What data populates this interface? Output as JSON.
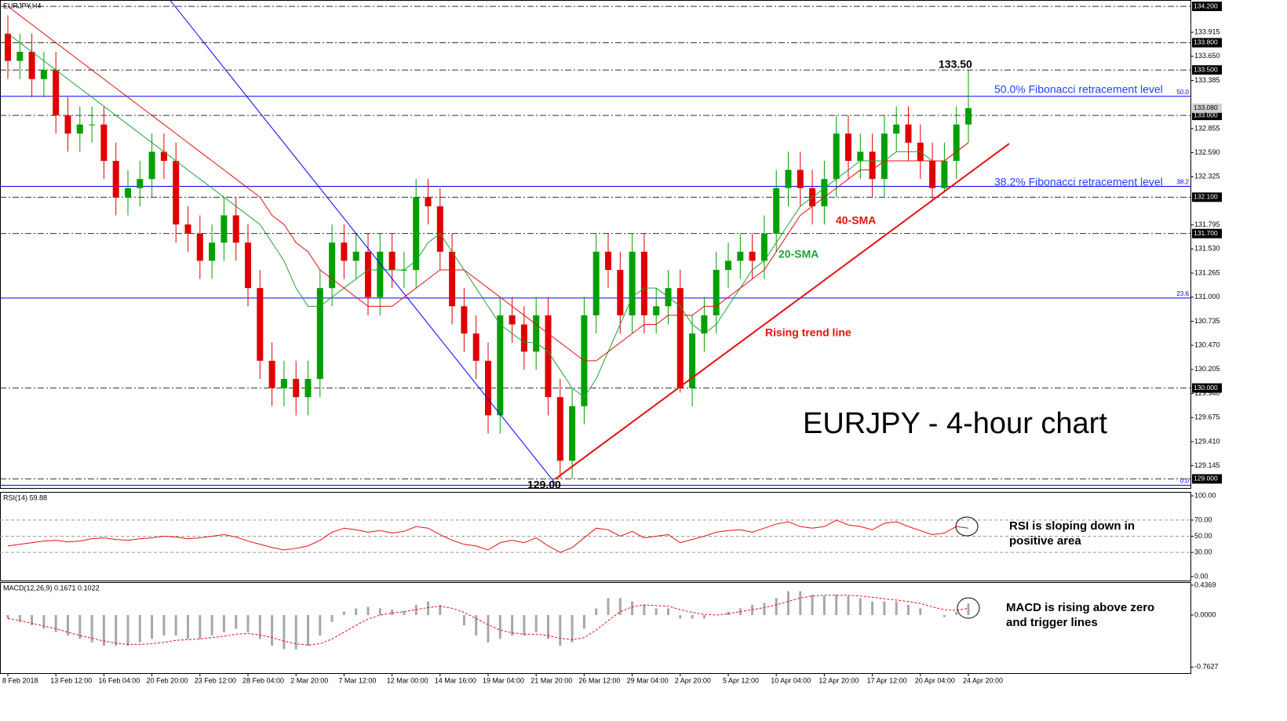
{
  "chart_data": [
    {
      "type": "candlestick",
      "title": "EURJPY,H4",
      "headline": "EURJPY - 4-hour chart",
      "categories": [
        "8 Feb 2018",
        null,
        null,
        null,
        "13 Feb 12:00",
        null,
        null,
        null,
        "16 Feb 04:00",
        null,
        null,
        null,
        "20 Feb 20:00",
        null,
        null,
        null,
        "23 Feb 12:00",
        null,
        null,
        null,
        "28 Feb 04:00",
        null,
        null,
        null,
        "2 Mar 20:00",
        null,
        null,
        null,
        "7 Mar 12:00",
        null,
        null,
        null,
        "12 Mar 00:00",
        null,
        null,
        null,
        "14 Mar 16:00",
        null,
        null,
        null,
        "19 Mar 04:00",
        null,
        null,
        null,
        "21 Mar 20:00",
        null,
        null,
        null,
        "26 Mar 12:00",
        null,
        null,
        null,
        "29 Mar 04:00",
        null,
        null,
        null,
        "2 Apr 20:00",
        null,
        null,
        null,
        "5 Apr 12:00",
        null,
        null,
        null,
        "10 Apr 04:00",
        null,
        null,
        null,
        "12 Apr 20:00",
        null,
        null,
        null,
        "17 Apr 12:00",
        null,
        null,
        null,
        "20 Apr 04:00",
        null,
        null,
        null,
        "24 Apr 20:00"
      ],
      "open": [
        133.9,
        133.6,
        133.7,
        133.4,
        133.5,
        133.0,
        132.8,
        132.9,
        132.9,
        132.5,
        132.1,
        132.2,
        132.3,
        132.6,
        132.5,
        131.8,
        131.7,
        131.4,
        131.6,
        131.9,
        131.6,
        131.1,
        130.3,
        130.0,
        130.1,
        129.9,
        130.1,
        131.1,
        131.6,
        131.4,
        131.5,
        131.0,
        131.5,
        131.3,
        131.3,
        132.1,
        132.0,
        131.5,
        130.9,
        130.6,
        130.3,
        129.7,
        130.8,
        130.7,
        130.4,
        130.8,
        129.9,
        129.2,
        129.8,
        130.8,
        131.5,
        131.3,
        130.8,
        131.5,
        130.8,
        130.9,
        131.1,
        130.0,
        130.6,
        130.8,
        131.3,
        131.4,
        131.5,
        131.4,
        131.7,
        132.2,
        132.4,
        132.2,
        132.0,
        132.3,
        132.8,
        132.5,
        132.6,
        132.3,
        132.8,
        132.9,
        132.7,
        132.5,
        132.2,
        132.5,
        132.9
      ],
      "high": [
        134.1,
        133.9,
        133.9,
        133.7,
        133.7,
        133.2,
        133.1,
        133.1,
        133.1,
        132.7,
        132.4,
        132.5,
        132.8,
        132.8,
        132.7,
        132.0,
        131.9,
        131.8,
        132.1,
        132.1,
        131.8,
        131.3,
        130.5,
        130.3,
        130.3,
        130.3,
        131.3,
        131.8,
        131.8,
        131.7,
        131.7,
        131.7,
        131.7,
        131.5,
        132.3,
        132.3,
        132.2,
        131.7,
        131.1,
        130.8,
        130.5,
        131.0,
        131.0,
        130.9,
        131.0,
        131.0,
        130.1,
        130.0,
        131.0,
        131.7,
        131.7,
        131.5,
        131.7,
        131.7,
        131.1,
        131.3,
        131.3,
        130.8,
        131.0,
        131.5,
        131.6,
        131.7,
        131.7,
        131.9,
        132.4,
        132.6,
        132.6,
        132.4,
        132.5,
        133.0,
        133.0,
        132.8,
        132.8,
        133.0,
        133.1,
        133.1,
        132.9,
        132.7,
        132.7,
        133.1,
        133.5
      ],
      "low": [
        133.4,
        133.4,
        133.2,
        133.2,
        132.8,
        132.6,
        132.6,
        132.7,
        132.3,
        131.9,
        131.9,
        132.0,
        132.1,
        132.3,
        131.6,
        131.5,
        131.2,
        131.2,
        131.4,
        131.4,
        130.9,
        130.1,
        129.8,
        129.8,
        129.7,
        129.7,
        129.9,
        130.9,
        131.2,
        131.2,
        130.8,
        130.8,
        131.1,
        131.1,
        131.1,
        131.8,
        131.3,
        130.7,
        130.4,
        130.1,
        129.5,
        129.5,
        130.5,
        130.2,
        130.2,
        129.7,
        129.0,
        129.0,
        129.6,
        130.6,
        131.1,
        130.6,
        130.6,
        130.6,
        130.6,
        130.7,
        129.95,
        129.8,
        130.4,
        130.6,
        131.1,
        131.2,
        131.2,
        131.2,
        131.5,
        132.0,
        132.0,
        131.8,
        131.8,
        132.1,
        132.3,
        132.3,
        132.1,
        132.1,
        132.6,
        132.5,
        132.3,
        132.05,
        132.15,
        132.3,
        132.7
      ],
      "close": [
        133.6,
        133.7,
        133.4,
        133.5,
        133.0,
        132.8,
        132.9,
        132.9,
        132.5,
        132.1,
        132.2,
        132.3,
        132.6,
        132.5,
        131.8,
        131.7,
        131.4,
        131.6,
        131.9,
        131.6,
        131.1,
        130.3,
        130.0,
        130.1,
        129.9,
        130.1,
        131.1,
        131.6,
        131.4,
        131.5,
        131.0,
        131.5,
        131.3,
        131.3,
        132.1,
        132.0,
        131.5,
        130.9,
        130.6,
        130.3,
        129.7,
        130.8,
        130.7,
        130.4,
        130.8,
        129.9,
        129.2,
        129.8,
        130.8,
        131.5,
        131.3,
        130.8,
        131.5,
        130.8,
        130.9,
        131.1,
        130.0,
        130.6,
        130.8,
        131.3,
        131.4,
        131.5,
        131.4,
        131.7,
        132.2,
        132.4,
        132.2,
        132.0,
        132.3,
        132.8,
        132.5,
        132.6,
        132.3,
        132.8,
        132.9,
        132.7,
        132.5,
        132.2,
        132.5,
        132.9,
        133.08
      ],
      "up_color": "#00a000",
      "down_color": "#e00000",
      "series": [
        {
          "name": "20-SMA",
          "color": "#21a336",
          "values": [
            133.9,
            133.8,
            133.7,
            133.6,
            133.5,
            133.4,
            133.3,
            133.2,
            133.1,
            133.0,
            132.9,
            132.8,
            132.7,
            132.6,
            132.5,
            132.4,
            132.3,
            132.2,
            132.1,
            132.0,
            131.9,
            131.8,
            131.6,
            131.4,
            131.1,
            130.9,
            130.9,
            131.0,
            131.1,
            131.2,
            131.3,
            131.3,
            131.3,
            131.3,
            131.4,
            131.6,
            131.7,
            131.5,
            131.3,
            131.1,
            130.9,
            130.7,
            130.6,
            130.5,
            130.5,
            130.4,
            130.2,
            130.0,
            129.9,
            130.1,
            130.4,
            130.7,
            131.0,
            131.1,
            131.1,
            131.0,
            130.9,
            130.7,
            130.6,
            130.7,
            130.9,
            131.1,
            131.3,
            131.4,
            131.6,
            131.8,
            132.0,
            132.1,
            132.2,
            132.3,
            132.4,
            132.5,
            132.5,
            132.5,
            132.6,
            132.6,
            132.6,
            132.5,
            132.5,
            132.6,
            132.7
          ]
        },
        {
          "name": "40-SMA",
          "color": "#e81010",
          "values": [
            134.2,
            134.1,
            134.0,
            133.9,
            133.8,
            133.7,
            133.6,
            133.5,
            133.4,
            133.3,
            133.2,
            133.1,
            133.0,
            132.9,
            132.8,
            132.7,
            132.6,
            132.5,
            132.4,
            132.3,
            132.2,
            132.1,
            131.9,
            131.8,
            131.6,
            131.5,
            131.3,
            131.2,
            131.1,
            131.0,
            130.9,
            130.9,
            130.9,
            131.0,
            131.1,
            131.2,
            131.3,
            131.3,
            131.3,
            131.2,
            131.1,
            131.0,
            130.9,
            130.8,
            130.7,
            130.6,
            130.5,
            130.4,
            130.3,
            130.3,
            130.4,
            130.5,
            130.6,
            130.7,
            130.7,
            130.8,
            130.8,
            130.8,
            130.9,
            130.9,
            131.0,
            131.1,
            131.2,
            131.3,
            131.5,
            131.7,
            131.9,
            132.0,
            132.1,
            132.2,
            132.3,
            132.4,
            132.4,
            132.5,
            132.5,
            132.5,
            132.5,
            132.5,
            132.5,
            132.6,
            132.7
          ]
        }
      ],
      "ylim": [
        128.9,
        134.27
      ],
      "yticks": [
        {
          "value": 133.915,
          "label": "133.915"
        },
        {
          "value": 133.65,
          "label": "133.650"
        },
        {
          "value": 133.385,
          "label": "133.385"
        },
        {
          "value": 132.855,
          "label": "132.855"
        },
        {
          "value": 132.59,
          "label": "132.590"
        },
        {
          "value": 132.325,
          "label": "132.325"
        },
        {
          "value": 131.795,
          "label": "131.795"
        },
        {
          "value": 131.53,
          "label": "131.530"
        },
        {
          "value": 131.265,
          "label": "131.265"
        },
        {
          "value": 131,
          "label": "131.000"
        },
        {
          "value": 130.735,
          "label": "130.735"
        },
        {
          "value": 130.47,
          "label": "130.470"
        },
        {
          "value": 130.205,
          "label": "130.205"
        },
        {
          "value": 129.94,
          "label": "129.940"
        },
        {
          "value": 129.675,
          "label": "129.675"
        },
        {
          "value": 129.41,
          "label": "129.410"
        },
        {
          "value": 129.145,
          "label": "129.145"
        }
      ],
      "levels": [
        {
          "value": 134.2,
          "label": "134.200"
        },
        {
          "value": 133.8,
          "label": "133.800"
        },
        {
          "value": 133.5,
          "label": "133.500"
        },
        {
          "value": 133,
          "label": "133.000"
        },
        {
          "value": 132.1,
          "label": "132.100"
        },
        {
          "value": 131.7,
          "label": "131.700"
        },
        {
          "value": 130,
          "label": "130.000"
        },
        {
          "value": 129,
          "label": "129.000"
        }
      ],
      "price_marker": {
        "value": 133.08,
        "label": "133.080"
      },
      "fib_color": "#0000ff",
      "fib_levels": [
        {
          "value": 133.21,
          "label": "50.0"
        },
        {
          "value": 132.22,
          "label": "38.2"
        },
        {
          "value": 130.99,
          "label": "23.6"
        },
        {
          "value": 128.93,
          "label": "0.0"
        }
      ],
      "lines": [
        {
          "from_index": 13.5,
          "from_price": 134.27,
          "to_index": 45.6,
          "to_price": 128.95,
          "color": "#0000ff"
        },
        {
          "from_index": 45.6,
          "from_price": 129.0,
          "to_index": 83.4,
          "to_price": 132.69,
          "color": "#e81010"
        }
      ],
      "annotations": [
        "133.50",
        "129.00",
        "Rising trend line",
        "50.0% Fibonacci retracement level",
        "38.2% Fibonacci retracement level"
      ]
    },
    {
      "type": "line",
      "title": "RSI(14) 59.88",
      "color": "#e81010",
      "values": [
        38,
        40,
        42,
        44,
        45,
        43,
        44,
        47,
        48,
        46,
        45,
        47,
        48,
        50,
        49,
        47,
        48,
        50,
        52,
        49,
        44,
        40,
        36,
        33,
        35,
        38,
        45,
        55,
        60,
        58,
        55,
        57,
        54,
        56,
        62,
        60,
        52,
        45,
        40,
        38,
        33,
        42,
        45,
        42,
        48,
        38,
        30,
        36,
        48,
        60,
        58,
        50,
        56,
        48,
        50,
        52,
        42,
        46,
        50,
        55,
        57,
        58,
        55,
        60,
        65,
        68,
        62,
        60,
        62,
        70,
        64,
        62,
        58,
        66,
        68,
        62,
        57,
        52,
        54,
        62,
        60
      ],
      "ylim": [
        -4.9,
        104.9
      ],
      "yticks": [
        {
          "value": 100,
          "label": "100.00"
        },
        {
          "value": 70,
          "label": "70.00"
        },
        {
          "value": 50,
          "label": "50.00"
        },
        {
          "value": 30,
          "label": "30.00"
        },
        {
          "value": 0,
          "label": "0.00"
        }
      ],
      "grid_levels": [
        30,
        50,
        70
      ],
      "note": [
        "RSI is sloping down in",
        "positive area"
      ]
    },
    {
      "type": "macd",
      "title": "MACD(12,26,9) 0.1671 0.1022",
      "hist_color": "#a8a8a8",
      "signal_color": "#e81010",
      "histogram": [
        -0.05,
        -0.1,
        -0.15,
        -0.2,
        -0.25,
        -0.3,
        -0.35,
        -0.4,
        -0.45,
        -0.45,
        -0.45,
        -0.4,
        -0.35,
        -0.3,
        -0.3,
        -0.35,
        -0.35,
        -0.3,
        -0.25,
        -0.2,
        -0.25,
        -0.35,
        -0.45,
        -0.5,
        -0.5,
        -0.45,
        -0.3,
        -0.1,
        0.05,
        0.1,
        0.12,
        0.1,
        0.08,
        0.06,
        0.15,
        0.2,
        0.15,
        0.0,
        -0.15,
        -0.3,
        -0.4,
        -0.35,
        -0.3,
        -0.3,
        -0.25,
        -0.35,
        -0.45,
        -0.4,
        -0.2,
        0.1,
        0.25,
        0.25,
        0.2,
        0.15,
        0.1,
        0.1,
        -0.05,
        -0.05,
        -0.05,
        0.0,
        0.05,
        0.1,
        0.15,
        0.18,
        0.25,
        0.35,
        0.35,
        0.3,
        0.28,
        0.3,
        0.28,
        0.25,
        0.2,
        0.2,
        0.2,
        0.15,
        0.1,
        0.0,
        -0.03,
        0.05,
        0.17
      ],
      "signal": [
        -0.05,
        -0.08,
        -0.12,
        -0.16,
        -0.2,
        -0.25,
        -0.3,
        -0.34,
        -0.38,
        -0.41,
        -0.43,
        -0.43,
        -0.42,
        -0.4,
        -0.37,
        -0.36,
        -0.35,
        -0.33,
        -0.31,
        -0.28,
        -0.27,
        -0.29,
        -0.33,
        -0.38,
        -0.42,
        -0.44,
        -0.42,
        -0.35,
        -0.25,
        -0.15,
        -0.06,
        0.0,
        0.03,
        0.05,
        0.08,
        0.11,
        0.13,
        0.1,
        0.04,
        -0.05,
        -0.14,
        -0.22,
        -0.26,
        -0.28,
        -0.28,
        -0.3,
        -0.34,
        -0.36,
        -0.33,
        -0.22,
        -0.08,
        0.05,
        0.12,
        0.15,
        0.14,
        0.13,
        0.08,
        0.04,
        0.01,
        0.0,
        0.02,
        0.05,
        0.08,
        0.11,
        0.15,
        0.2,
        0.25,
        0.28,
        0.29,
        0.29,
        0.29,
        0.28,
        0.26,
        0.24,
        0.22,
        0.2,
        0.17,
        0.12,
        0.08,
        0.07,
        0.1
      ],
      "ylim": [
        -0.851,
        0.483
      ],
      "yticks": [
        0.4369,
        {
          "value": 0,
          "label": "0.0000"
        },
        -0.7627
      ],
      "note": [
        "MACD is rising above zero",
        "and trigger lines"
      ]
    }
  ]
}
